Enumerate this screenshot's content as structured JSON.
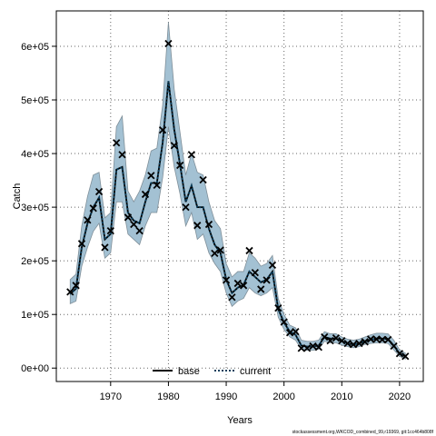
{
  "chart_data": {
    "type": "line",
    "xlabel": "Years",
    "ylabel": "Catch",
    "footnote": "stockassessment.org,WKCOD_combined_99,r19369, git:1cc464b808f",
    "x": [
      1963,
      1964,
      1965,
      1966,
      1967,
      1968,
      1969,
      1970,
      1971,
      1972,
      1973,
      1974,
      1975,
      1976,
      1977,
      1978,
      1979,
      1980,
      1981,
      1982,
      1983,
      1984,
      1985,
      1986,
      1987,
      1988,
      1989,
      1990,
      1991,
      1992,
      1993,
      1994,
      1995,
      1996,
      1997,
      1998,
      1999,
      2000,
      2001,
      2002,
      2003,
      2004,
      2005,
      2006,
      2007,
      2008,
      2009,
      2010,
      2011,
      2012,
      2013,
      2014,
      2015,
      2016,
      2017,
      2018,
      2019,
      2020,
      2021
    ],
    "observed": {
      "color": "#000000",
      "values": [
        142000,
        154000,
        232000,
        276000,
        298000,
        329000,
        225000,
        256000,
        420000,
        398000,
        281000,
        268000,
        256000,
        324000,
        359000,
        341000,
        444000,
        605000,
        415000,
        378000,
        300000,
        398000,
        266000,
        351000,
        268000,
        214000,
        220000,
        164000,
        132000,
        158000,
        154000,
        219000,
        178000,
        147000,
        164000,
        192000,
        112000,
        86000,
        66000,
        68000,
        37000,
        37000,
        41000,
        39000,
        58000,
        51000,
        56000,
        51000,
        46000,
        44000,
        46000,
        49000,
        54000,
        54000,
        53000,
        53000,
        41000,
        27000,
        22000
      ]
    },
    "band": {
      "color": "#a3c1d3",
      "upper": [
        165000,
        175000,
        265000,
        320000,
        360000,
        365000,
        280000,
        290000,
        450000,
        470000,
        330000,
        310000,
        330000,
        360000,
        405000,
        410000,
        490000,
        645000,
        520000,
        440000,
        360000,
        400000,
        365000,
        360000,
        310000,
        275000,
        260000,
        195000,
        170000,
        180000,
        180000,
        215000,
        205000,
        190000,
        195000,
        210000,
        130000,
        100000,
        80000,
        75000,
        52000,
        50000,
        50000,
        52000,
        68000,
        64000,
        64000,
        58000,
        54000,
        52000,
        54000,
        58000,
        62000,
        65000,
        65000,
        64000,
        52000,
        34000,
        28000
      ],
      "lower": [
        120000,
        125000,
        190000,
        225000,
        255000,
        270000,
        205000,
        215000,
        310000,
        310000,
        250000,
        240000,
        230000,
        265000,
        290000,
        290000,
        355000,
        450000,
        375000,
        325000,
        265000,
        290000,
        240000,
        250000,
        215000,
        195000,
        180000,
        140000,
        115000,
        125000,
        130000,
        150000,
        140000,
        135000,
        140000,
        150000,
        95000,
        72000,
        58000,
        52000,
        35000,
        33000,
        33000,
        35000,
        50000,
        47000,
        47000,
        43000,
        40000,
        38000,
        40000,
        44000,
        46000,
        47000,
        47000,
        46000,
        34000,
        22000,
        17000
      ]
    },
    "series": [
      {
        "name": "base",
        "color": "#000000",
        "dash": false,
        "values": [
          138000,
          148000,
          225000,
          270000,
          300000,
          318000,
          240000,
          250000,
          370000,
          375000,
          290000,
          275000,
          270000,
          310000,
          345000,
          345000,
          420000,
          535000,
          445000,
          380000,
          310000,
          340000,
          300000,
          300000,
          260000,
          230000,
          215000,
          165000,
          140000,
          150000,
          155000,
          180000,
          170000,
          160000,
          165000,
          180000,
          110000,
          85000,
          68000,
          62000,
          42000,
          40000,
          40000,
          42000,
          58000,
          55000,
          55000,
          50000,
          46000,
          44000,
          46000,
          50000,
          53000,
          55000,
          55000,
          54000,
          42000,
          27000,
          22000
        ]
      },
      {
        "name": "current",
        "color": "#0d3f5c",
        "dash": true,
        "values": [
          138000,
          148000,
          225000,
          270000,
          300000,
          318000,
          240000,
          250000,
          370000,
          375000,
          290000,
          275000,
          270000,
          310000,
          345000,
          345000,
          420000,
          535000,
          445000,
          380000,
          310000,
          340000,
          300000,
          300000,
          260000,
          230000,
          215000,
          165000,
          140000,
          150000,
          155000,
          180000,
          170000,
          160000,
          165000,
          180000,
          110000,
          85000,
          68000,
          62000,
          42000,
          40000,
          40000,
          42000,
          58000,
          55000,
          55000,
          50000,
          46000,
          44000,
          46000,
          50000,
          53000,
          55000,
          55000,
          54000,
          42000,
          27000,
          22000
        ]
      }
    ],
    "xlim": [
      1960.6,
      2024.1
    ],
    "ylim": [
      -25000,
      666000
    ],
    "xticks": [
      1970,
      1980,
      1990,
      2000,
      2010,
      2020
    ],
    "yticks": [
      {
        "value": 0,
        "label": "0e+00"
      },
      {
        "value": 100000,
        "label": "1e+05"
      },
      {
        "value": 200000,
        "label": "2e+05"
      },
      {
        "value": 300000,
        "label": "3e+05"
      },
      {
        "value": 400000,
        "label": "4e+05"
      },
      {
        "value": 500000,
        "label": "5e+05"
      },
      {
        "value": 600000,
        "label": "6e+05"
      }
    ],
    "grid": true,
    "legend": "bottom"
  }
}
